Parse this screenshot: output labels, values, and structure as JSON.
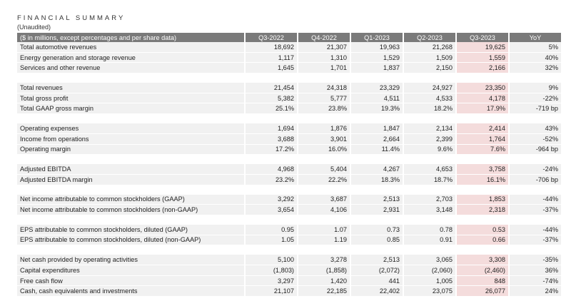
{
  "title": "FINANCIAL SUMMARY",
  "subtitle": "(Unaudited)",
  "header": [
    "($ in millions, except percentages and per share data)",
    "Q3-2022",
    "Q4-2022",
    "Q1-2023",
    "Q2-2023",
    "Q3-2023",
    "YoY"
  ],
  "highlight_color": "#f4dcdc",
  "groups": [
    [
      [
        "Total automotive revenues",
        "18,692",
        "21,307",
        "19,963",
        "21,268",
        "19,625",
        "5%"
      ],
      [
        "Energy generation and storage revenue",
        "1,117",
        "1,310",
        "1,529",
        "1,509",
        "1,559",
        "40%"
      ],
      [
        "Services and other revenue",
        "1,645",
        "1,701",
        "1,837",
        "2,150",
        "2,166",
        "32%"
      ]
    ],
    [
      [
        "Total revenues",
        "21,454",
        "24,318",
        "23,329",
        "24,927",
        "23,350",
        "9%"
      ],
      [
        "Total gross profit",
        "5,382",
        "5,777",
        "4,511",
        "4,533",
        "4,178",
        "-22%"
      ],
      [
        "Total GAAP gross margin",
        "25.1%",
        "23.8%",
        "19.3%",
        "18.2%",
        "17.9%",
        "-719 bp"
      ]
    ],
    [
      [
        "Operating expenses",
        "1,694",
        "1,876",
        "1,847",
        "2,134",
        "2,414",
        "43%"
      ],
      [
        "Income from operations",
        "3,688",
        "3,901",
        "2,664",
        "2,399",
        "1,764",
        "-52%"
      ],
      [
        "Operating margin",
        "17.2%",
        "16.0%",
        "11.4%",
        "9.6%",
        "7.6%",
        "-964 bp"
      ]
    ],
    [
      [
        "Adjusted EBITDA",
        "4,968",
        "5,404",
        "4,267",
        "4,653",
        "3,758",
        "-24%"
      ],
      [
        "Adjusted EBITDA margin",
        "23.2%",
        "22.2%",
        "18.3%",
        "18.7%",
        "16.1%",
        "-706 bp"
      ]
    ],
    [
      [
        "Net income attributable to common stockholders (GAAP)",
        "3,292",
        "3,687",
        "2,513",
        "2,703",
        "1,853",
        "-44%"
      ],
      [
        "Net income attributable to common stockholders (non-GAAP)",
        "3,654",
        "4,106",
        "2,931",
        "3,148",
        "2,318",
        "-37%"
      ]
    ],
    [
      [
        "EPS attributable to common stockholders, diluted (GAAP)",
        "0.95",
        "1.07",
        "0.73",
        "0.78",
        "0.53",
        "-44%"
      ],
      [
        "EPS attributable to common stockholders, diluted (non-GAAP)",
        "1.05",
        "1.19",
        "0.85",
        "0.91",
        "0.66",
        "-37%"
      ]
    ],
    [
      [
        "Net cash provided by operating activities",
        "5,100",
        "3,278",
        "2,513",
        "3,065",
        "3,308",
        "-35%"
      ],
      [
        "Capital expenditures",
        "(1,803)",
        "(1,858)",
        "(2,072)",
        "(2,060)",
        "(2,460)",
        "36%"
      ],
      [
        "Free cash flow",
        "3,297",
        "1,420",
        "441",
        "1,005",
        "848",
        "-74%"
      ],
      [
        "Cash, cash equivalents and investments",
        "21,107",
        "22,185",
        "22,402",
        "23,075",
        "26,077",
        "24%"
      ]
    ]
  ]
}
